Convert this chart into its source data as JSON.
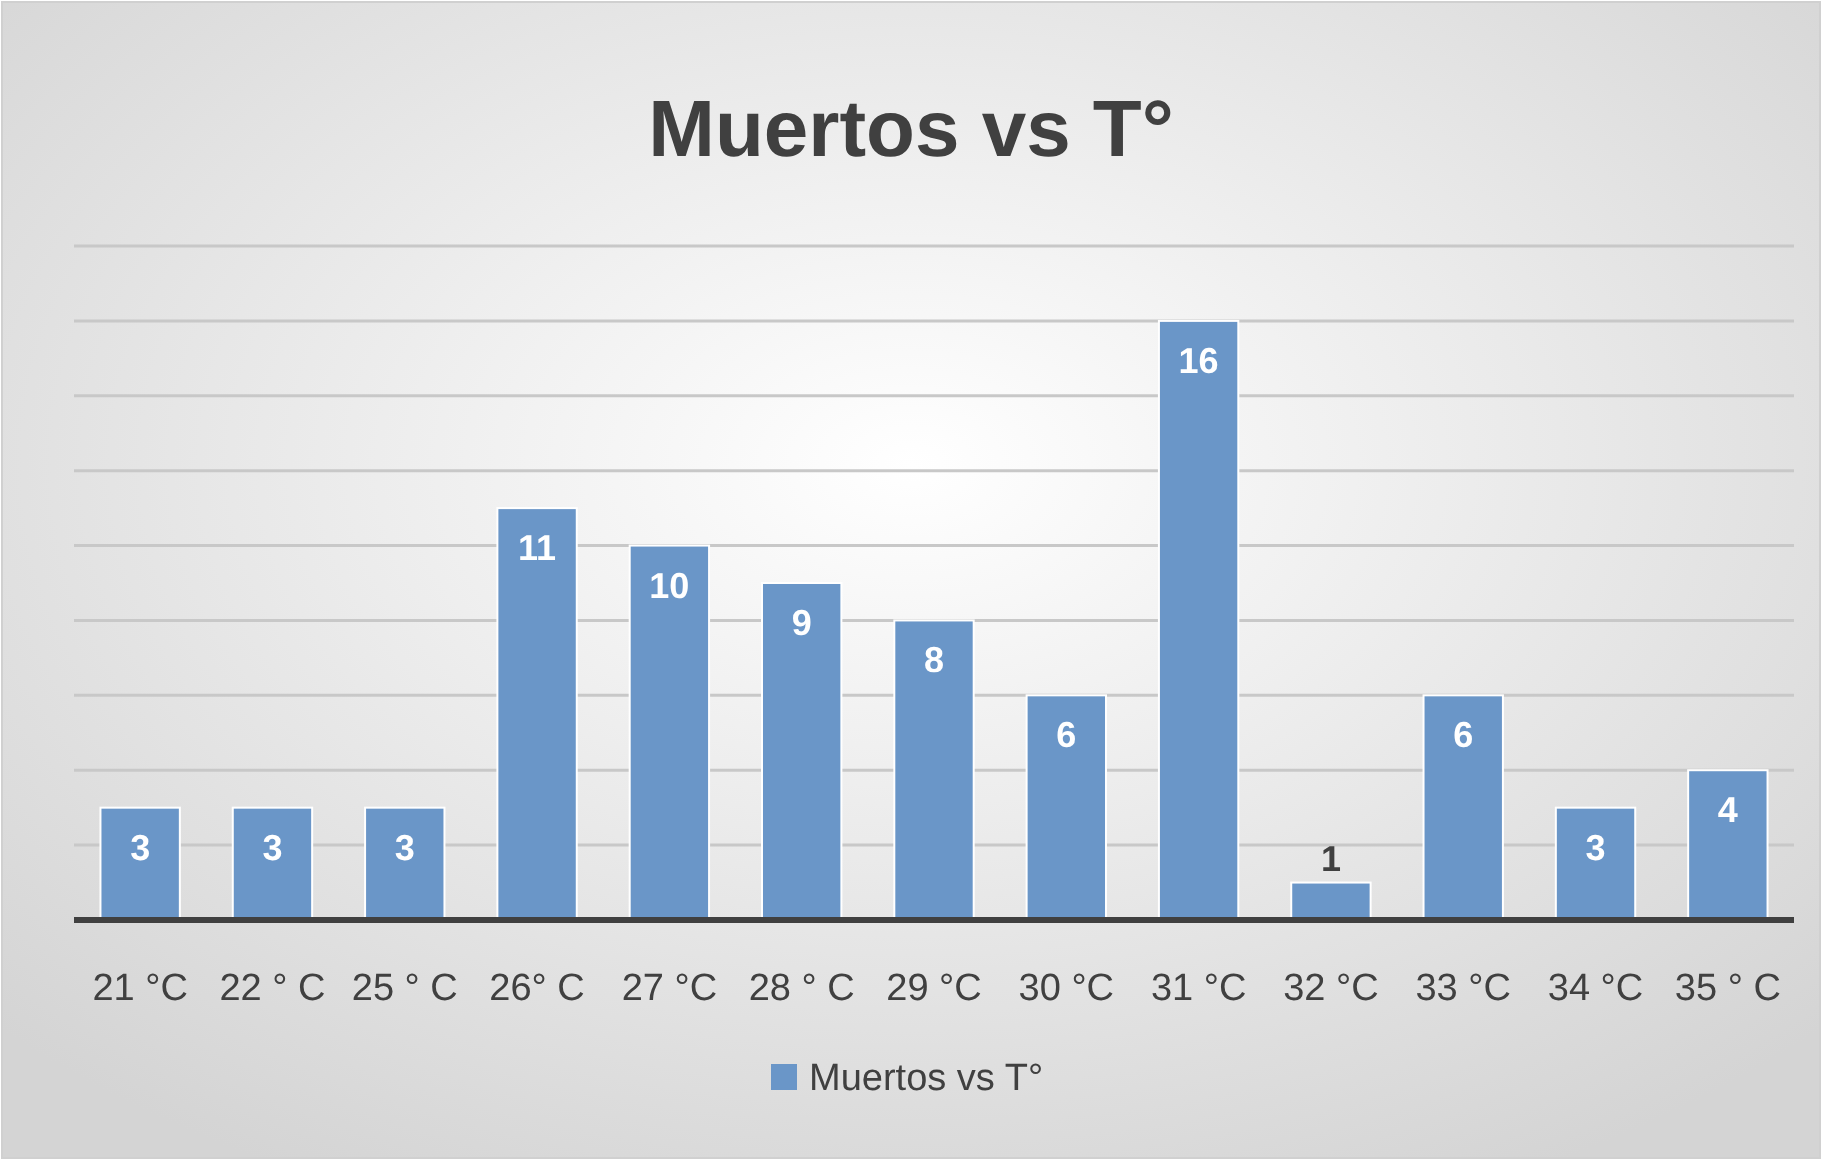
{
  "chart_data": {
    "type": "bar",
    "title": "Muertos vs T°",
    "categories": [
      "21 °C",
      "22 ° C",
      "25 ° C",
      "26° C",
      "27 °C",
      "28 ° C",
      "29 °C",
      "30 °C",
      "31 °C",
      "32 °C",
      "33 °C",
      "34 °C",
      "35 ° C"
    ],
    "series": [
      {
        "name": "Muertos vs T°",
        "color": "#6a96c8",
        "values": [
          3,
          3,
          3,
          11,
          10,
          9,
          8,
          6,
          16,
          1,
          6,
          3,
          4
        ]
      }
    ],
    "ylim": [
      0,
      18
    ],
    "yticks": [
      {
        "value": 0,
        "label": null
      },
      {
        "value": 2,
        "label": null
      },
      {
        "value": 4,
        "label": null
      },
      {
        "value": 6,
        "label": null
      },
      {
        "value": 8,
        "label": null
      },
      {
        "value": 10,
        "label": null
      },
      {
        "value": 12,
        "label": null
      },
      {
        "value": 14,
        "label": null
      },
      {
        "value": 16,
        "label": null
      },
      {
        "value": 18,
        "label": null
      }
    ],
    "tick_labels": "x",
    "grid": "y",
    "legend": "bottom",
    "data_labels": true
  }
}
